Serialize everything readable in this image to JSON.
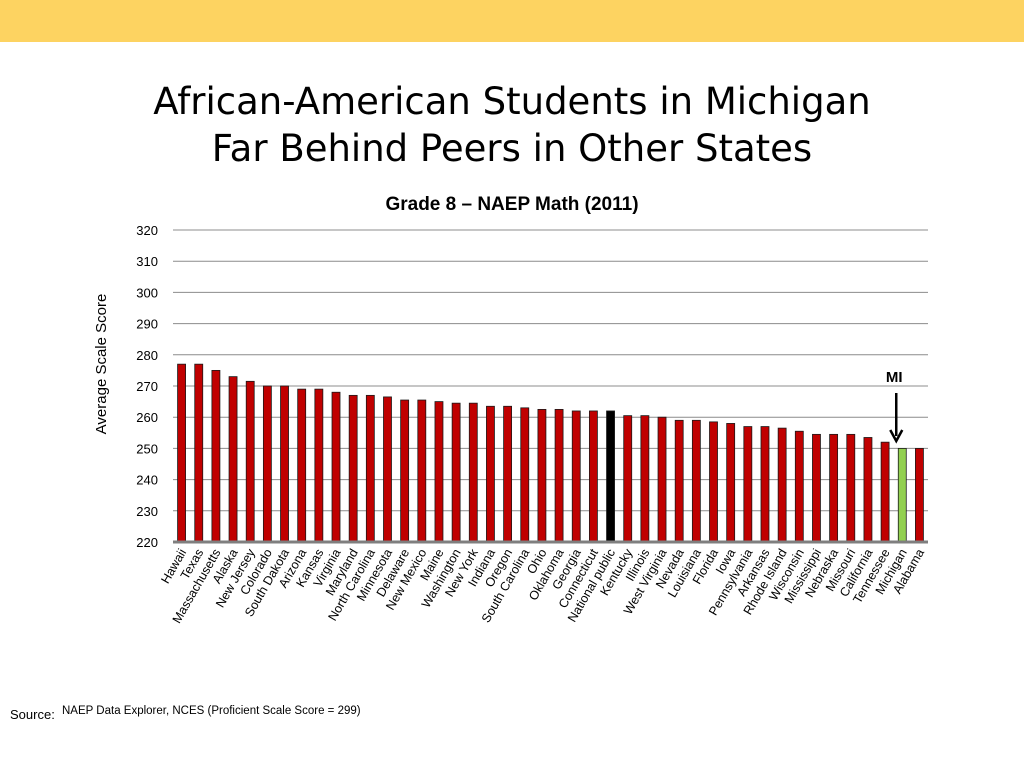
{
  "slide": {
    "title_line1": "African-American Students in Michigan",
    "title_line2": "Far Behind Peers in Other States",
    "accent_color": "#fdd361",
    "source_label": "Source:",
    "source_text": "NAEP Data Explorer, NCES (Proficient Scale Score = 299)"
  },
  "chart_data": {
    "type": "bar",
    "title": "Grade 8 – NAEP Math (2011)",
    "ylabel": "Average Scale Score",
    "xlabel": "",
    "ylim": [
      220,
      320
    ],
    "yticks": [
      220,
      230,
      240,
      250,
      260,
      270,
      280,
      290,
      300,
      310,
      320
    ],
    "grid": true,
    "categories": [
      "Hawaii",
      "Texas",
      "Massachusetts",
      "Alaska",
      "New Jersey",
      "Colorado",
      "South Dakota",
      "Arizona",
      "Kansas",
      "Virginia",
      "Maryland",
      "North Carolina",
      "Minnesota",
      "Delaware",
      "New Mexico",
      "Maine",
      "Washington",
      "New York",
      "Indiana",
      "Oregon",
      "South Carolina",
      "Ohio",
      "Oklahoma",
      "Georgia",
      "Connecticut",
      "National public",
      "Kentucky",
      "Illinois",
      "West Virginia",
      "Nevada",
      "Louisiana",
      "Florida",
      "Iowa",
      "Pennsylvania",
      "Arkansas",
      "Rhode Island",
      "Wisconsin",
      "Mississippi",
      "Nebraska",
      "Missouri",
      "California",
      "Tennessee",
      "Michigan",
      "Alabama"
    ],
    "values": [
      277,
      277,
      275,
      273,
      271.5,
      270,
      270,
      269,
      269,
      268,
      267,
      267,
      266.5,
      265.5,
      265.5,
      265,
      264.5,
      264.5,
      263.5,
      263.5,
      263,
      262.5,
      262.5,
      262,
      262,
      262,
      260.5,
      260.5,
      260,
      259,
      259,
      258.5,
      258,
      257,
      257,
      256.5,
      255.5,
      254.5,
      254.5,
      254.5,
      253.5,
      252,
      250,
      250
    ],
    "colors": {
      "default": "#c00000",
      "national": "#000000",
      "michigan": "#92d050",
      "outline": "#1a1a1a",
      "grid": "#8c8c8c"
    },
    "highlight_national": "National public",
    "highlight_state": "Michigan",
    "annotation": {
      "text": "MI",
      "target": "Michigan"
    }
  }
}
